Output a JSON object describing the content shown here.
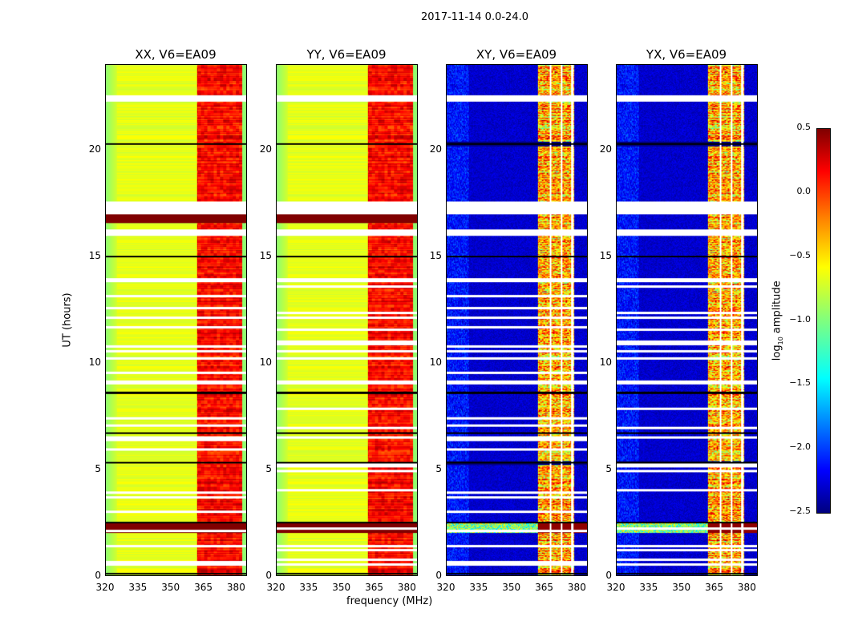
{
  "chart_data": {
    "type": "heatmap",
    "title": "2017-11-14 0.0-24.0",
    "xlabel": "frequency (MHz)",
    "ylabel": "UT (hours)",
    "xlim": [
      320,
      385
    ],
    "ylim": [
      0,
      24
    ],
    "xticks": [
      "320",
      "335",
      "350",
      "365",
      "380"
    ],
    "yticks": [
      "0",
      "5",
      "10",
      "15",
      "20"
    ],
    "panels": [
      {
        "title": "XX, V6=EA09",
        "kind": "parallel"
      },
      {
        "title": "YY, V6=EA09",
        "kind": "parallel"
      },
      {
        "title": "XY, V6=EA09",
        "kind": "cross"
      },
      {
        "title": "YX, V6=EA09",
        "kind": "cross"
      }
    ],
    "levels": {
      "parallel": {
        "edge": -0.95,
        "base": -0.7,
        "band": 0.1,
        "band_start_mhz": 362,
        "strong_rows": [
          [
            2.0,
            2.5
          ],
          [
            16.6,
            17.0
          ]
        ]
      },
      "cross": {
        "base": -2.4,
        "band": -0.9,
        "band_start_mhz": 362,
        "band_end_mhz": 379,
        "white_cols_mhz": [
          368,
          373,
          378
        ]
      }
    },
    "gaps_hours": [
      [
        22.3,
        22.6
      ],
      [
        17.0,
        17.6
      ],
      [
        16.0,
        16.3
      ],
      [
        13.8,
        14.0
      ],
      [
        9.0,
        9.2
      ],
      [
        1.35,
        1.46
      ],
      [
        0.05,
        0.1
      ]
    ],
    "dark_lines_hours": [
      20.3,
      15.0,
      8.6,
      6.7,
      5.3,
      2.5,
      0.1
    ],
    "colorbar": {
      "label": "log10 amplitude",
      "min": -2.5,
      "max": 0.5,
      "ticks": [
        "0.5",
        "0.0",
        "−0.5",
        "−1.0",
        "−1.5",
        "−2.0",
        "−2.5"
      ],
      "colormap": "jet"
    }
  }
}
